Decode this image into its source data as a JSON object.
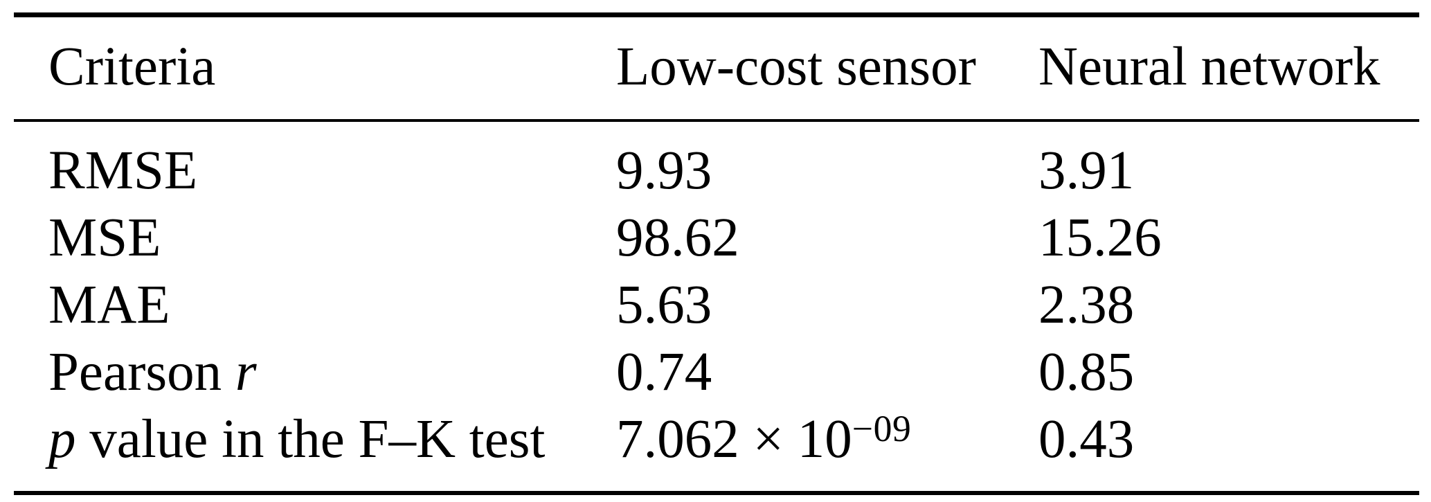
{
  "colors": {
    "background": "#ffffff",
    "text": "#000000",
    "rule": "#000000"
  },
  "table": {
    "columns": [
      {
        "key": "criteria",
        "label": "Criteria"
      },
      {
        "key": "low_cost_sensor",
        "label": "Low-cost sensor"
      },
      {
        "key": "neural_network",
        "label": "Neural network"
      }
    ],
    "rows": [
      {
        "criteria": [
          {
            "t": "RMSE"
          }
        ],
        "low_cost_sensor": [
          {
            "t": "9.93"
          }
        ],
        "neural_network": [
          {
            "t": "3.91"
          }
        ]
      },
      {
        "criteria": [
          {
            "t": "MSE"
          }
        ],
        "low_cost_sensor": [
          {
            "t": "98.62"
          }
        ],
        "neural_network": [
          {
            "t": "15.26"
          }
        ]
      },
      {
        "criteria": [
          {
            "t": "MAE"
          }
        ],
        "low_cost_sensor": [
          {
            "t": "5.63"
          }
        ],
        "neural_network": [
          {
            "t": "2.38"
          }
        ]
      },
      {
        "criteria": [
          {
            "t": "Pearson "
          },
          {
            "t": "r",
            "italic": true
          }
        ],
        "low_cost_sensor": [
          {
            "t": "0.74"
          }
        ],
        "neural_network": [
          {
            "t": "0.85"
          }
        ]
      },
      {
        "criteria": [
          {
            "t": "p",
            "italic": true
          },
          {
            "t": " value in the F–K test"
          }
        ],
        "low_cost_sensor": [
          {
            "t": "7.062 × 10"
          },
          {
            "t": "−09",
            "sup": true
          }
        ],
        "neural_network": [
          {
            "t": "0.43"
          }
        ]
      }
    ]
  }
}
